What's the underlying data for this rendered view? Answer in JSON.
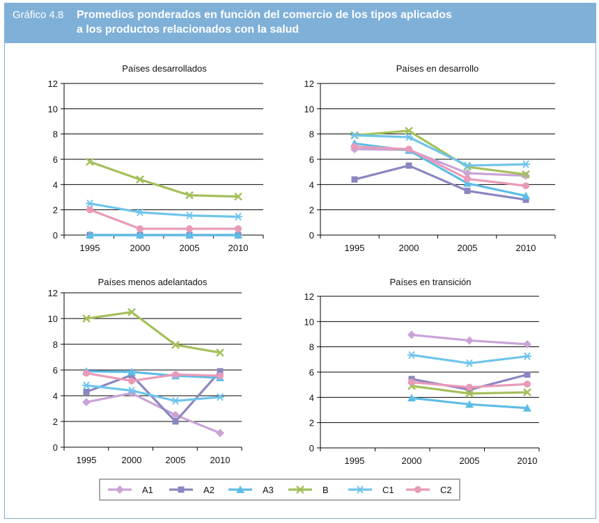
{
  "header": {
    "figure_number": "Gráfico 4.8",
    "title_line1": "Promedios ponderados en función del comercio de los tipos aplicados",
    "title_line2": "a los productos relacionados con la salud"
  },
  "colors": {
    "A1": "#c9a3d6",
    "A2": "#8a86bf",
    "A3": "#5dbde6",
    "B": "#a3c05a",
    "C1": "#6fc4ec",
    "C2": "#e99ab8",
    "header_bg": "#7fb0d8"
  },
  "legend": [
    "A1",
    "A2",
    "A3",
    "B",
    "C1",
    "C2"
  ],
  "chart_data": [
    {
      "type": "line",
      "title": "Países desarrollados",
      "categories": [
        "1995",
        "2000",
        "2005",
        "2010"
      ],
      "ylim": [
        0,
        12
      ],
      "yticks": [
        "0",
        "2",
        "4",
        "6",
        "8",
        "10",
        "12"
      ],
      "grid": true,
      "series": [
        {
          "name": "A1",
          "values": [
            0.0,
            0.0,
            0.0,
            0.0
          ]
        },
        {
          "name": "A2",
          "values": [
            0.0,
            0.0,
            0.0,
            0.0
          ]
        },
        {
          "name": "A3",
          "values": [
            0.0,
            0.0,
            0.0,
            0.0
          ]
        },
        {
          "name": "B",
          "values": [
            5.8,
            4.4,
            3.15,
            3.05
          ]
        },
        {
          "name": "C1",
          "values": [
            2.5,
            1.8,
            1.55,
            1.45
          ]
        },
        {
          "name": "C2",
          "values": [
            2.0,
            0.5,
            0.5,
            0.5
          ]
        }
      ]
    },
    {
      "type": "line",
      "title": "Países en desarrollo",
      "categories": [
        "1995",
        "2000",
        "2005",
        "2010"
      ],
      "ylim": [
        0,
        12
      ],
      "yticks": [
        "0",
        "2",
        "4",
        "6",
        "8",
        "10",
        "12"
      ],
      "grid": true,
      "series": [
        {
          "name": "A1",
          "values": [
            6.8,
            6.75,
            4.9,
            4.7
          ]
        },
        {
          "name": "A2",
          "values": [
            4.4,
            5.5,
            3.5,
            2.8
          ]
        },
        {
          "name": "A3",
          "values": [
            7.25,
            6.7,
            4.1,
            3.1
          ]
        },
        {
          "name": "B",
          "values": [
            7.9,
            8.25,
            5.4,
            4.8
          ]
        },
        {
          "name": "C1",
          "values": [
            7.9,
            7.75,
            5.5,
            5.6
          ]
        },
        {
          "name": "C2",
          "values": [
            7.0,
            6.8,
            4.45,
            3.9
          ]
        }
      ]
    },
    {
      "type": "line",
      "title": "Países menos adelantados",
      "categories": [
        "1995",
        "2000",
        "2005",
        "2010"
      ],
      "ylim": [
        0,
        12
      ],
      "yticks": [
        "0",
        "2",
        "4",
        "6",
        "8",
        "10",
        "12"
      ],
      "grid": true,
      "series": [
        {
          "name": "A1",
          "values": [
            3.5,
            4.2,
            2.5,
            1.1
          ]
        },
        {
          "name": "A2",
          "values": [
            4.3,
            5.6,
            2.0,
            5.9
          ]
        },
        {
          "name": "A3",
          "values": [
            5.9,
            5.85,
            5.55,
            5.4
          ]
        },
        {
          "name": "B",
          "values": [
            10.0,
            10.5,
            7.95,
            7.35
          ]
        },
        {
          "name": "C1",
          "values": [
            4.8,
            4.4,
            3.6,
            3.9
          ]
        },
        {
          "name": "C2",
          "values": [
            5.75,
            5.15,
            5.65,
            5.55
          ]
        }
      ]
    },
    {
      "type": "line",
      "title": "Países en transición",
      "categories": [
        "1995",
        "2000",
        "2005",
        "2010"
      ],
      "ylim": [
        0,
        12
      ],
      "yticks": [
        "0",
        "2",
        "4",
        "6",
        "8",
        "10",
        "12"
      ],
      "grid": true,
      "series": [
        {
          "name": "A1",
          "values": [
            null,
            8.95,
            8.5,
            8.2
          ]
        },
        {
          "name": "A2",
          "values": [
            null,
            5.45,
            4.6,
            5.8
          ]
        },
        {
          "name": "A3",
          "values": [
            null,
            3.95,
            3.45,
            3.15
          ]
        },
        {
          "name": "B",
          "values": [
            null,
            4.9,
            4.3,
            4.4
          ]
        },
        {
          "name": "C1",
          "values": [
            null,
            7.35,
            6.7,
            7.25
          ]
        },
        {
          "name": "C2",
          "values": [
            null,
            5.2,
            4.8,
            5.05
          ]
        }
      ]
    }
  ]
}
